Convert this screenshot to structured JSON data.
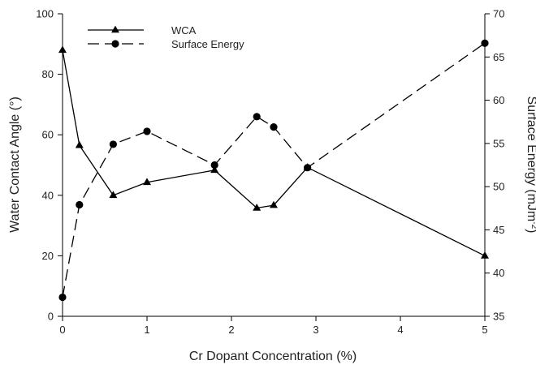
{
  "chart_data": {
    "type": "line",
    "title": "",
    "xlabel": "Cr Dopant Concentration (%)",
    "ylabel": "Water Contact Angle (°)",
    "y2label_prefix": "Surface Energy (mJm",
    "y2label_sup": "-2",
    "y2label_suffix": ")",
    "xlim": [
      0,
      5
    ],
    "ylim": [
      0,
      100
    ],
    "y2lim": [
      35,
      70
    ],
    "x_ticks": [
      "0",
      "1",
      "2",
      "3",
      "4",
      "5"
    ],
    "y_ticks": [
      "0",
      "20",
      "40",
      "60",
      "80",
      "100"
    ],
    "y2_ticks": [
      "35",
      "40",
      "45",
      "50",
      "55",
      "60",
      "65",
      "70"
    ],
    "grid": false,
    "legend_position": "top-left",
    "series": [
      {
        "name": "WCA",
        "axis": "left",
        "marker": "triangle",
        "line_style": "solid",
        "color": "#000000",
        "x": [
          0,
          0.2,
          0.6,
          1.0,
          1.8,
          2.3,
          2.5,
          2.9,
          5.0
        ],
        "y": [
          88,
          56.5,
          40,
          44.3,
          48.3,
          35.8,
          36.7,
          49.2,
          20
        ]
      },
      {
        "name": "Surface Energy",
        "axis": "right",
        "marker": "circle",
        "line_style": "dashed",
        "color": "#000000",
        "x": [
          0,
          0.2,
          0.6,
          1.0,
          1.8,
          2.3,
          2.5,
          2.9,
          5.0
        ],
        "y": [
          37.2,
          47.9,
          54.9,
          56.4,
          52.5,
          58.1,
          56.9,
          52.2,
          66.6
        ]
      }
    ]
  }
}
